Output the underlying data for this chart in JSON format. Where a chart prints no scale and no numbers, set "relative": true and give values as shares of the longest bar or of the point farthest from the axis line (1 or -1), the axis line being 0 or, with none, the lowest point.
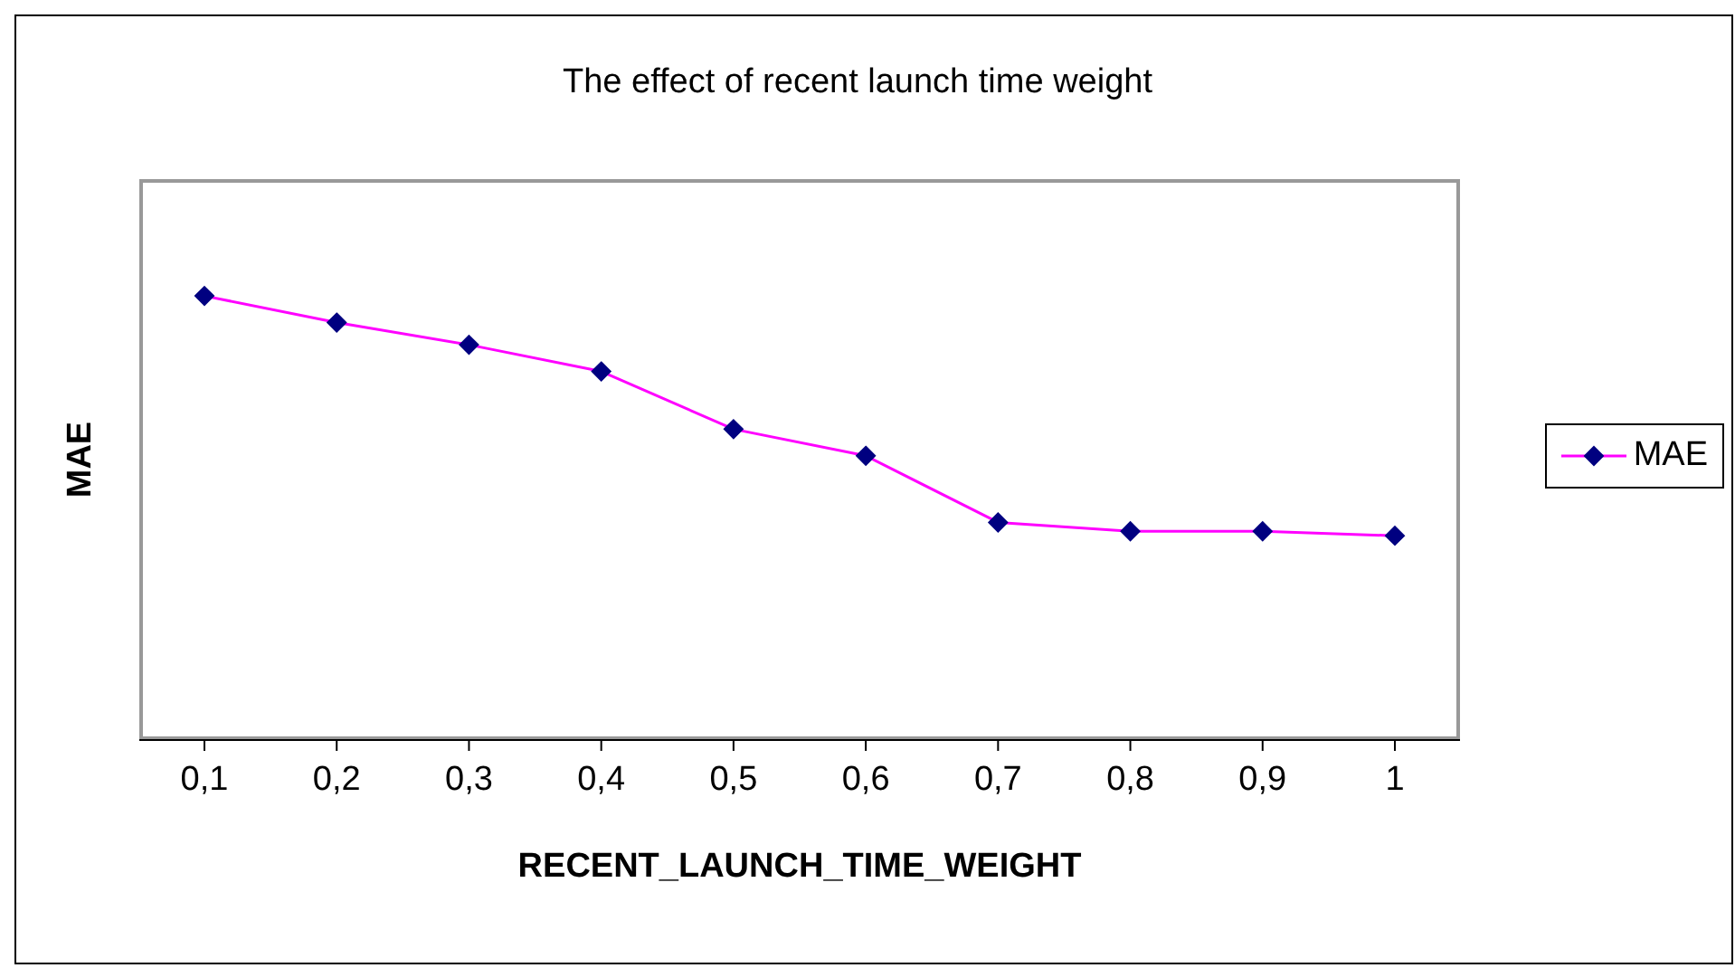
{
  "chart_data": {
    "type": "line",
    "title": "The effect of recent launch time weight",
    "xlabel": "RECENT_LAUNCH_TIME_WEIGHT",
    "ylabel": "MAE",
    "categories": [
      "0,1",
      "0,2",
      "0,3",
      "0,4",
      "0,5",
      "0,6",
      "0,7",
      "0,8",
      "0,9",
      "1"
    ],
    "relative": true,
    "series": [
      {
        "name": "MAE",
        "color": "#ff00ff",
        "values": [
          1,
          0.94,
          0.89,
          0.83,
          0.7,
          0.64,
          0.49,
          0.47,
          0.47,
          0.46
        ]
      }
    ],
    "marker": "diamond",
    "line_style": "solid",
    "grid": false,
    "legend": "right"
  }
}
